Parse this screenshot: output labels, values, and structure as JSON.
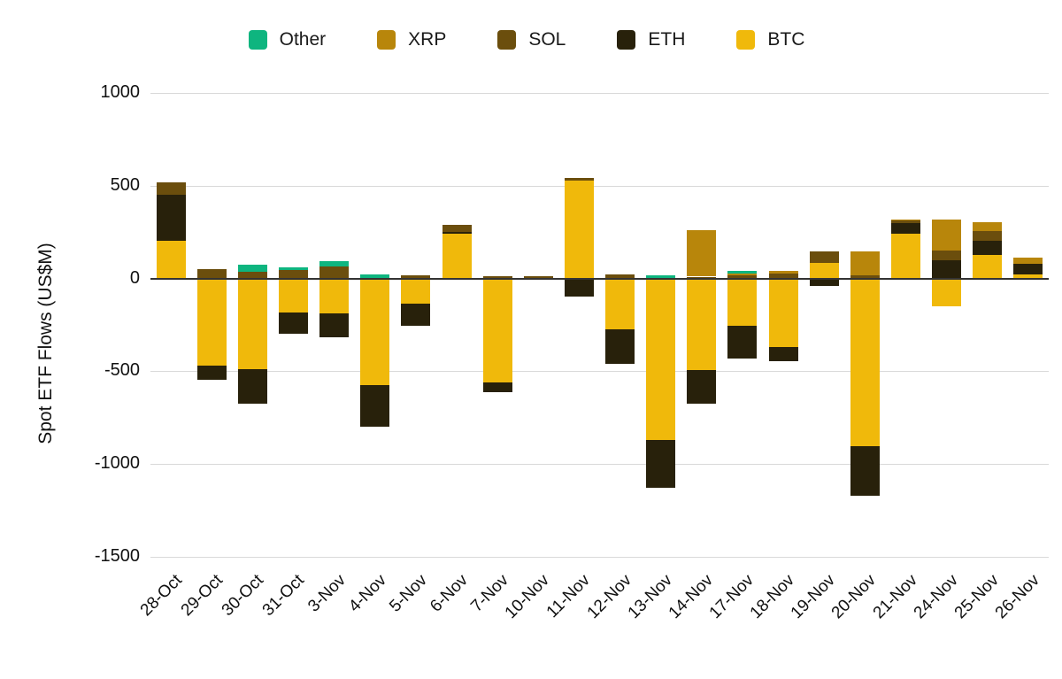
{
  "chart_data": {
    "type": "bar",
    "variant": "stacked",
    "title": "",
    "ylabel": "Spot ETF Flows (US$M)",
    "xlabel": "",
    "legend_position": "top",
    "grid": true,
    "ylim": [
      -1500,
      1000
    ],
    "y_ticks": [
      1000,
      500,
      0,
      -500,
      -1000,
      -1500
    ],
    "categories": [
      "28-Oct",
      "29-Oct",
      "30-Oct",
      "31-Oct",
      "3-Nov",
      "4-Nov",
      "5-Nov",
      "6-Nov",
      "7-Nov",
      "10-Nov",
      "11-Nov",
      "12-Nov",
      "13-Nov",
      "14-Nov",
      "17-Nov",
      "18-Nov",
      "19-Nov",
      "20-Nov",
      "21-Nov",
      "24-Nov",
      "25-Nov",
      "26-Nov"
    ],
    "legend_order": [
      "Other",
      "XRP",
      "SOL",
      "ETH",
      "BTC"
    ],
    "series": [
      {
        "name": "BTC",
        "color": "#F0B90B",
        "values": [
          205,
          -470,
          -490,
          -185,
          -190,
          -575,
          -137,
          240,
          -558,
          0,
          528,
          -272,
          -868,
          -494,
          -256,
          -370,
          85,
          -905,
          242,
          -148,
          129,
          22
        ]
      },
      {
        "name": "ETH",
        "color": "#28210B",
        "values": [
          245,
          -76,
          -183,
          -112,
          -127,
          -222,
          -119,
          10,
          -56,
          0,
          -97,
          -188,
          -262,
          -180,
          -175,
          -77,
          -41,
          -265,
          59,
          99,
          76,
          56
        ]
      },
      {
        "name": "SOL",
        "color": "#6B4E0D",
        "values": [
          70,
          50,
          38,
          48,
          65,
          0,
          15,
          40,
          13,
          12,
          13,
          20,
          0,
          10,
          16,
          27,
          60,
          18,
          10,
          50,
          51,
          0
        ]
      },
      {
        "name": "XRP",
        "color": "#B8860B",
        "values": [
          0,
          0,
          0,
          0,
          0,
          0,
          0,
          0,
          0,
          0,
          0,
          0,
          0,
          250,
          11,
          14,
          0,
          127,
          7,
          169,
          48,
          36
        ]
      },
      {
        "name": "Other",
        "color": "#0EB57F",
        "values": [
          0,
          0,
          35,
          14,
          30,
          20,
          0,
          0,
          0,
          0,
          0,
          0,
          17,
          0,
          14,
          0,
          0,
          0,
          0,
          0,
          0,
          0
        ]
      }
    ],
    "colors": {
      "grid": "#d9d9d9",
      "zero_axis": "#333333",
      "text": "#111111"
    }
  }
}
